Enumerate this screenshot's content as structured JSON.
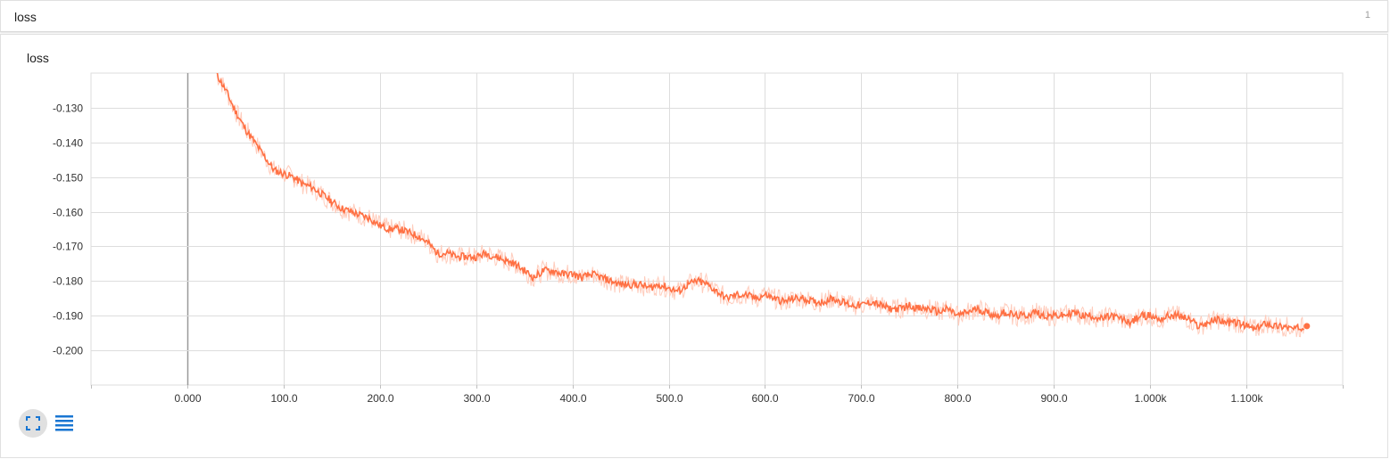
{
  "card": {
    "title": "loss",
    "count": "1"
  },
  "colors": {
    "series": "#ff7043",
    "series_raw": "#ffccbc",
    "grid": "#dddddd",
    "zero_line": "#999999",
    "axis": "#bdbdbd",
    "tool_icon": "#1976d2",
    "tool_bg": "#e0e0e0"
  },
  "toolbar": {
    "expand_icon": "fullscreen-icon",
    "data_icon": "list-icon"
  },
  "chart_data": {
    "type": "line",
    "title": "loss",
    "xlabel": "",
    "ylabel": "",
    "xlim": [
      -100,
      1200
    ],
    "ylim": [
      -0.21,
      -0.12
    ],
    "x_ticks": [
      0,
      100,
      200,
      300,
      400,
      500,
      600,
      700,
      800,
      900,
      1000,
      1100
    ],
    "x_tick_labels": [
      "0.000",
      "100.0",
      "200.0",
      "300.0",
      "400.0",
      "500.0",
      "600.0",
      "700.0",
      "800.0",
      "900.0",
      "1.000k",
      "1.100k"
    ],
    "y_ticks": [
      -0.13,
      -0.14,
      -0.15,
      -0.16,
      -0.17,
      -0.18,
      -0.19,
      -0.2
    ],
    "y_tick_labels": [
      "-0.130",
      "-0.140",
      "-0.150",
      "-0.160",
      "-0.170",
      "-0.180",
      "-0.190",
      "-0.200"
    ],
    "grid": true,
    "legend": "none",
    "series": [
      {
        "smoothed": true,
        "x": [
          30,
          40,
          50,
          60,
          70,
          80,
          90,
          100,
          110,
          120,
          130,
          140,
          150,
          160,
          170,
          180,
          190,
          200,
          210,
          220,
          230,
          240,
          250,
          260,
          270,
          280,
          290,
          300,
          310,
          320,
          330,
          340,
          350,
          360,
          370,
          380,
          390,
          400,
          410,
          420,
          430,
          440,
          450,
          460,
          470,
          480,
          490,
          500,
          510,
          520,
          530,
          540,
          550,
          560,
          570,
          580,
          590,
          600,
          610,
          620,
          630,
          640,
          650,
          660,
          670,
          680,
          690,
          700,
          710,
          720,
          730,
          740,
          750,
          760,
          770,
          780,
          790,
          800,
          810,
          820,
          830,
          840,
          850,
          860,
          870,
          880,
          890,
          900,
          910,
          920,
          930,
          940,
          950,
          960,
          970,
          980,
          990,
          1000,
          1010,
          1020,
          1030,
          1040,
          1050,
          1060,
          1070,
          1080,
          1090,
          1100,
          1110,
          1120,
          1130,
          1140,
          1150,
          1160
        ],
        "y": [
          -0.12,
          -0.125,
          -0.131,
          -0.136,
          -0.14,
          -0.144,
          -0.148,
          -0.149,
          -0.15,
          -0.152,
          -0.153,
          -0.155,
          -0.157,
          -0.159,
          -0.16,
          -0.161,
          -0.162,
          -0.164,
          -0.165,
          -0.165,
          -0.166,
          -0.167,
          -0.169,
          -0.172,
          -0.172,
          -0.173,
          -0.173,
          -0.173,
          -0.172,
          -0.173,
          -0.174,
          -0.175,
          -0.177,
          -0.179,
          -0.177,
          -0.177,
          -0.178,
          -0.178,
          -0.179,
          -0.178,
          -0.179,
          -0.18,
          -0.181,
          -0.181,
          -0.181,
          -0.182,
          -0.181,
          -0.182,
          -0.183,
          -0.181,
          -0.18,
          -0.181,
          -0.183,
          -0.185,
          -0.184,
          -0.184,
          -0.185,
          -0.184,
          -0.185,
          -0.186,
          -0.185,
          -0.185,
          -0.186,
          -0.186,
          -0.185,
          -0.186,
          -0.187,
          -0.187,
          -0.186,
          -0.187,
          -0.188,
          -0.188,
          -0.187,
          -0.188,
          -0.188,
          -0.189,
          -0.188,
          -0.19,
          -0.189,
          -0.188,
          -0.189,
          -0.19,
          -0.189,
          -0.19,
          -0.19,
          -0.189,
          -0.19,
          -0.19,
          -0.19,
          -0.189,
          -0.19,
          -0.19,
          -0.191,
          -0.19,
          -0.191,
          -0.192,
          -0.19,
          -0.19,
          -0.191,
          -0.19,
          -0.19,
          -0.191,
          -0.193,
          -0.192,
          -0.191,
          -0.192,
          -0.192,
          -0.193,
          -0.194,
          -0.192,
          -0.193,
          -0.193,
          -0.194,
          -0.193
        ]
      }
    ]
  }
}
